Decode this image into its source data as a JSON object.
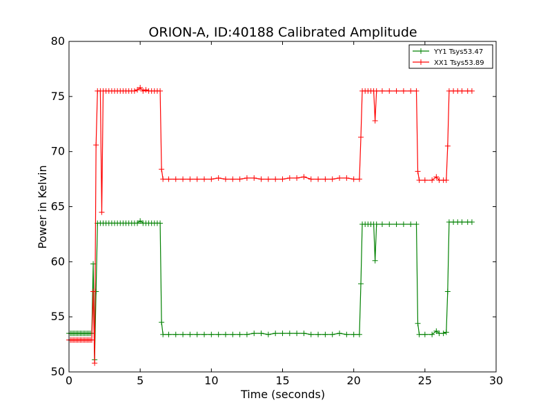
{
  "chart_data": {
    "type": "line",
    "title": "ORION-A, ID:40188 Calibrated Amplitude",
    "xlabel": "Time (seconds)",
    "ylabel": "Power in Kelvin",
    "xlim": [
      0,
      30
    ],
    "ylim": [
      50,
      80
    ],
    "xticks": [
      0,
      5,
      10,
      15,
      20,
      25,
      30
    ],
    "yticks": [
      50,
      55,
      60,
      65,
      70,
      75,
      80
    ],
    "xtick_labels": [
      "0",
      "5",
      "10",
      "15",
      "20",
      "25",
      "30"
    ],
    "ytick_labels": [
      "50",
      "55",
      "60",
      "65",
      "70",
      "75",
      "80"
    ],
    "grid": false,
    "legend_position": "top-right",
    "marker": "+",
    "series": [
      {
        "name": "YY1 Tsys53.47",
        "color": "#008000",
        "points": [
          [
            0.0,
            53.5
          ],
          [
            0.1,
            53.5
          ],
          [
            0.2,
            53.5
          ],
          [
            0.3,
            53.5
          ],
          [
            0.4,
            53.5
          ],
          [
            0.5,
            53.5
          ],
          [
            0.6,
            53.5
          ],
          [
            0.7,
            53.5
          ],
          [
            0.8,
            53.5
          ],
          [
            0.9,
            53.5
          ],
          [
            1.0,
            53.5
          ],
          [
            1.1,
            53.5
          ],
          [
            1.2,
            53.5
          ],
          [
            1.3,
            53.5
          ],
          [
            1.4,
            53.5
          ],
          [
            1.5,
            53.5
          ],
          [
            1.6,
            53.5
          ],
          [
            1.7,
            59.8
          ],
          [
            1.8,
            51.1
          ],
          [
            1.9,
            57.3
          ],
          [
            2.0,
            63.5
          ],
          [
            2.2,
            63.5
          ],
          [
            2.4,
            63.5
          ],
          [
            2.6,
            63.5
          ],
          [
            2.8,
            63.5
          ],
          [
            3.0,
            63.5
          ],
          [
            3.2,
            63.5
          ],
          [
            3.4,
            63.5
          ],
          [
            3.6,
            63.5
          ],
          [
            3.8,
            63.5
          ],
          [
            4.0,
            63.5
          ],
          [
            4.2,
            63.5
          ],
          [
            4.4,
            63.5
          ],
          [
            4.6,
            63.5
          ],
          [
            4.8,
            63.5
          ],
          [
            5.0,
            63.7
          ],
          [
            5.2,
            63.5
          ],
          [
            5.4,
            63.5
          ],
          [
            5.6,
            63.5
          ],
          [
            5.8,
            63.5
          ],
          [
            6.0,
            63.5
          ],
          [
            6.2,
            63.5
          ],
          [
            6.4,
            63.5
          ],
          [
            6.5,
            54.5
          ],
          [
            6.6,
            53.4
          ],
          [
            7.0,
            53.4
          ],
          [
            7.5,
            53.4
          ],
          [
            8.0,
            53.4
          ],
          [
            8.5,
            53.4
          ],
          [
            9.0,
            53.4
          ],
          [
            9.5,
            53.4
          ],
          [
            10.0,
            53.4
          ],
          [
            10.5,
            53.4
          ],
          [
            11.0,
            53.4
          ],
          [
            11.5,
            53.4
          ],
          [
            12.0,
            53.4
          ],
          [
            12.5,
            53.4
          ],
          [
            13.0,
            53.5
          ],
          [
            13.5,
            53.5
          ],
          [
            14.0,
            53.4
          ],
          [
            14.5,
            53.5
          ],
          [
            15.0,
            53.5
          ],
          [
            15.5,
            53.5
          ],
          [
            16.0,
            53.5
          ],
          [
            16.5,
            53.5
          ],
          [
            17.0,
            53.4
          ],
          [
            17.5,
            53.4
          ],
          [
            18.0,
            53.4
          ],
          [
            18.5,
            53.4
          ],
          [
            19.0,
            53.5
          ],
          [
            19.5,
            53.4
          ],
          [
            20.0,
            53.4
          ],
          [
            20.4,
            53.4
          ],
          [
            20.5,
            58.0
          ],
          [
            20.6,
            63.4
          ],
          [
            20.8,
            63.4
          ],
          [
            21.0,
            63.4
          ],
          [
            21.2,
            63.4
          ],
          [
            21.4,
            63.4
          ],
          [
            21.5,
            60.1
          ],
          [
            21.6,
            63.4
          ],
          [
            22.0,
            63.4
          ],
          [
            22.5,
            63.4
          ],
          [
            23.0,
            63.4
          ],
          [
            23.5,
            63.4
          ],
          [
            24.0,
            63.4
          ],
          [
            24.4,
            63.4
          ],
          [
            24.5,
            54.4
          ],
          [
            24.6,
            53.4
          ],
          [
            25.0,
            53.4
          ],
          [
            25.5,
            53.4
          ],
          [
            25.8,
            53.7
          ],
          [
            26.0,
            53.5
          ],
          [
            26.3,
            53.5
          ],
          [
            26.5,
            53.6
          ],
          [
            26.6,
            57.3
          ],
          [
            26.7,
            63.6
          ],
          [
            27.0,
            63.6
          ],
          [
            27.3,
            63.6
          ],
          [
            27.6,
            63.6
          ],
          [
            28.0,
            63.6
          ],
          [
            28.3,
            63.6
          ]
        ]
      },
      {
        "name": "XX1 Tsys53.89",
        "color": "#ff0000",
        "points": [
          [
            0.0,
            52.9
          ],
          [
            0.1,
            52.9
          ],
          [
            0.2,
            52.9
          ],
          [
            0.3,
            52.9
          ],
          [
            0.4,
            52.9
          ],
          [
            0.5,
            52.9
          ],
          [
            0.6,
            52.9
          ],
          [
            0.7,
            52.9
          ],
          [
            0.8,
            52.9
          ],
          [
            0.9,
            52.9
          ],
          [
            1.0,
            52.9
          ],
          [
            1.1,
            52.9
          ],
          [
            1.2,
            52.9
          ],
          [
            1.3,
            52.9
          ],
          [
            1.4,
            52.9
          ],
          [
            1.5,
            52.9
          ],
          [
            1.6,
            52.9
          ],
          [
            1.7,
            57.3
          ],
          [
            1.8,
            50.8
          ],
          [
            1.9,
            70.6
          ],
          [
            2.0,
            75.5
          ],
          [
            2.2,
            75.5
          ],
          [
            2.3,
            64.5
          ],
          [
            2.4,
            75.5
          ],
          [
            2.6,
            75.5
          ],
          [
            2.8,
            75.5
          ],
          [
            3.0,
            75.5
          ],
          [
            3.2,
            75.5
          ],
          [
            3.4,
            75.5
          ],
          [
            3.6,
            75.5
          ],
          [
            3.8,
            75.5
          ],
          [
            4.0,
            75.5
          ],
          [
            4.2,
            75.5
          ],
          [
            4.4,
            75.5
          ],
          [
            4.6,
            75.5
          ],
          [
            4.8,
            75.6
          ],
          [
            5.0,
            75.8
          ],
          [
            5.2,
            75.5
          ],
          [
            5.4,
            75.6
          ],
          [
            5.6,
            75.5
          ],
          [
            5.8,
            75.5
          ],
          [
            6.0,
            75.5
          ],
          [
            6.2,
            75.5
          ],
          [
            6.4,
            75.5
          ],
          [
            6.5,
            68.4
          ],
          [
            6.6,
            67.5
          ],
          [
            7.0,
            67.5
          ],
          [
            7.5,
            67.5
          ],
          [
            8.0,
            67.5
          ],
          [
            8.5,
            67.5
          ],
          [
            9.0,
            67.5
          ],
          [
            9.5,
            67.5
          ],
          [
            10.0,
            67.5
          ],
          [
            10.5,
            67.6
          ],
          [
            11.0,
            67.5
          ],
          [
            11.5,
            67.5
          ],
          [
            12.0,
            67.5
          ],
          [
            12.5,
            67.6
          ],
          [
            13.0,
            67.6
          ],
          [
            13.5,
            67.5
          ],
          [
            14.0,
            67.5
          ],
          [
            14.5,
            67.5
          ],
          [
            15.0,
            67.5
          ],
          [
            15.5,
            67.6
          ],
          [
            16.0,
            67.6
          ],
          [
            16.5,
            67.7
          ],
          [
            17.0,
            67.5
          ],
          [
            17.5,
            67.5
          ],
          [
            18.0,
            67.5
          ],
          [
            18.5,
            67.5
          ],
          [
            19.0,
            67.6
          ],
          [
            19.5,
            67.6
          ],
          [
            20.0,
            67.5
          ],
          [
            20.4,
            67.5
          ],
          [
            20.5,
            71.3
          ],
          [
            20.6,
            75.5
          ],
          [
            20.8,
            75.5
          ],
          [
            21.0,
            75.5
          ],
          [
            21.2,
            75.5
          ],
          [
            21.4,
            75.5
          ],
          [
            21.5,
            72.8
          ],
          [
            21.6,
            75.5
          ],
          [
            22.0,
            75.5
          ],
          [
            22.5,
            75.5
          ],
          [
            23.0,
            75.5
          ],
          [
            23.5,
            75.5
          ],
          [
            24.0,
            75.5
          ],
          [
            24.4,
            75.5
          ],
          [
            24.5,
            68.2
          ],
          [
            24.6,
            67.4
          ],
          [
            25.0,
            67.4
          ],
          [
            25.5,
            67.4
          ],
          [
            25.8,
            67.7
          ],
          [
            26.0,
            67.4
          ],
          [
            26.3,
            67.4
          ],
          [
            26.5,
            67.4
          ],
          [
            26.6,
            70.5
          ],
          [
            26.7,
            75.5
          ],
          [
            27.0,
            75.5
          ],
          [
            27.3,
            75.5
          ],
          [
            27.6,
            75.5
          ],
          [
            28.0,
            75.5
          ],
          [
            28.3,
            75.5
          ]
        ]
      }
    ]
  }
}
